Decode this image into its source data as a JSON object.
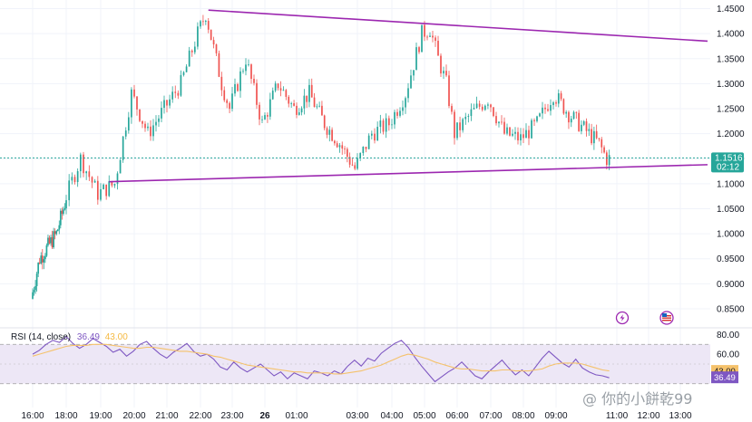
{
  "chart_data": [
    {
      "type": "candlestick",
      "ylim": [
        0.83,
        1.46
      ],
      "y_ticks": [
        "1.4500",
        "1.4000",
        "1.3500",
        "1.3000",
        "1.2500",
        "1.2000",
        "1.1500",
        "1.1000",
        "1.0500",
        "1.0000",
        "0.9500",
        "0.9000",
        "0.8500"
      ],
      "x_ticks": [
        "16:00",
        "18:00",
        "19:00",
        "20:00",
        "21:00",
        "22:00",
        "23:00",
        "26",
        "01:00",
        "03:00",
        "04:00",
        "05:00",
        "06:00",
        "07:00",
        "08:00",
        "09:00",
        "11:00",
        "12:00",
        "13:00"
      ],
      "last_price": "1.1516",
      "countdown": "02:12",
      "candle_colors": {
        "up": "#26a69a",
        "down": "#ef5350"
      },
      "trendline_color": "#9c27b0",
      "trendlines": [
        {
          "from": [
            "22:15",
            1.447
          ],
          "to": [
            "13:00",
            1.385
          ]
        },
        {
          "from": [
            "19:15",
            1.104
          ],
          "to": [
            "13:00",
            1.138
          ]
        }
      ],
      "price_path": [
        [
          "16:00",
          0.87
        ],
        [
          "16:30",
          0.95
        ],
        [
          "17:30",
          1.0
        ],
        [
          "18:00",
          1.06
        ],
        [
          "18:30",
          1.15
        ],
        [
          "19:00",
          1.08
        ],
        [
          "19:30",
          1.1
        ],
        [
          "20:00",
          1.28
        ],
        [
          "20:30",
          1.2
        ],
        [
          "21:00",
          1.25
        ],
        [
          "21:30",
          1.3
        ],
        [
          "22:00",
          1.4
        ],
        [
          "22:15",
          1.44
        ],
        [
          "22:45",
          1.3
        ],
        [
          "23:00",
          1.25
        ],
        [
          "23:30",
          1.35
        ],
        [
          "24:00",
          1.22
        ],
        [
          "00:30",
          1.3
        ],
        [
          "01:00",
          1.25
        ],
        [
          "01:30",
          1.28
        ],
        [
          "02:00",
          1.22
        ],
        [
          "02:30",
          1.18
        ],
        [
          "03:00",
          1.13
        ],
        [
          "03:30",
          1.2
        ],
        [
          "04:00",
          1.22
        ],
        [
          "04:30",
          1.28
        ],
        [
          "05:00",
          1.4
        ],
        [
          "05:15",
          1.41
        ],
        [
          "05:30",
          1.35
        ],
        [
          "05:45",
          1.3
        ],
        [
          "06:00",
          1.2
        ],
        [
          "06:30",
          1.24
        ],
        [
          "07:00",
          1.27
        ],
        [
          "07:30",
          1.2
        ],
        [
          "08:00",
          1.19
        ],
        [
          "08:30",
          1.22
        ],
        [
          "09:00",
          1.28
        ],
        [
          "09:30",
          1.24
        ],
        [
          "10:00",
          1.21
        ],
        [
          "10:30",
          1.18
        ],
        [
          "10:45",
          1.15
        ]
      ]
    },
    {
      "type": "line",
      "title": "RSI (14, close)",
      "rsi_value": "36.49",
      "ma_value": "43.00",
      "ylim": [
        15,
        85
      ],
      "y_ticks": [
        "80.00",
        "60.00"
      ],
      "bands": [
        70,
        30
      ],
      "series": [
        {
          "color": "#7e57c2",
          "values": [
            60,
            64,
            70,
            74,
            72,
            78,
            71,
            66,
            70,
            76,
            72,
            68,
            62,
            65,
            58,
            63,
            70,
            73,
            66,
            60,
            56,
            62,
            66,
            71,
            63,
            58,
            60,
            55,
            47,
            44,
            52,
            46,
            42,
            46,
            50,
            44,
            38,
            42,
            35,
            41,
            38,
            35,
            43,
            41,
            38,
            43,
            40,
            48,
            54,
            48,
            56,
            53,
            61,
            66,
            71,
            74,
            67,
            57,
            48,
            40,
            32,
            37,
            42,
            46,
            52,
            45,
            38,
            35,
            42,
            48,
            54,
            46,
            39,
            44,
            38,
            47,
            56,
            63,
            57,
            51,
            47,
            55,
            46,
            42,
            39,
            38,
            36
          ]
        },
        {
          "color": "#f5c26b",
          "values": [
            58,
            60,
            62,
            64,
            66,
            68,
            69,
            69,
            69,
            70,
            70,
            70,
            69,
            68,
            67,
            66,
            66,
            67,
            67,
            66,
            65,
            64,
            63,
            63,
            62,
            61,
            60,
            58,
            57,
            55,
            53,
            51,
            49,
            48,
            47,
            46,
            45,
            44,
            43,
            42,
            42,
            41,
            41,
            41,
            41,
            40,
            40,
            41,
            42,
            43,
            45,
            47,
            49,
            52,
            55,
            58,
            60,
            59,
            57,
            55,
            52,
            50,
            48,
            46,
            45,
            45,
            44,
            43,
            43,
            43,
            44,
            44,
            43,
            43,
            43,
            44,
            45,
            48,
            50,
            51,
            51,
            51,
            50,
            48,
            46,
            44,
            43
          ]
        }
      ]
    }
  ],
  "watermark": "@ 你的小餅乾99"
}
